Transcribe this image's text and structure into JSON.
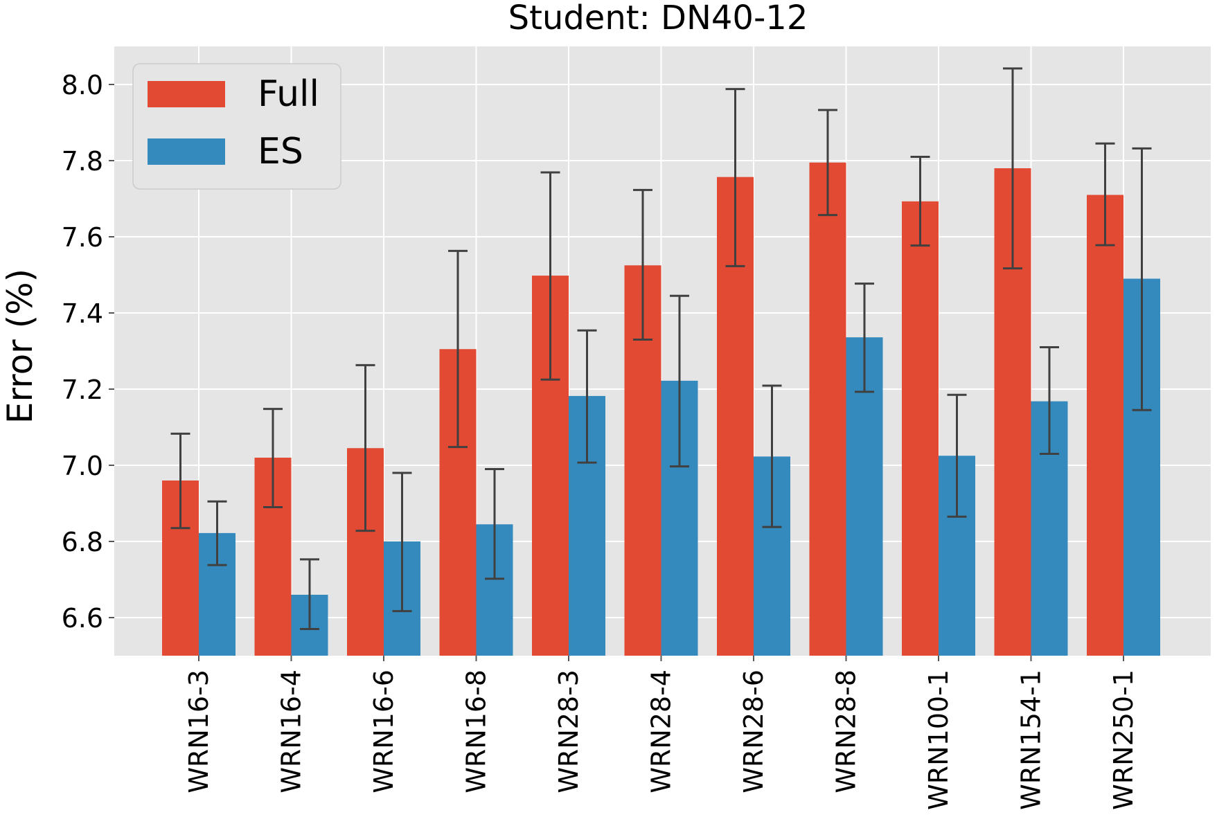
{
  "chart_data": {
    "type": "bar",
    "title": "Student: DN40-12",
    "xlabel": "",
    "ylabel": "Error (%)",
    "ylim": [
      6.5,
      8.1
    ],
    "yticks": [
      6.6,
      6.8,
      7.0,
      7.2,
      7.4,
      7.6,
      7.8,
      8.0
    ],
    "ytick_labels": [
      "6.6",
      "6.8",
      "7.0",
      "7.2",
      "7.4",
      "7.6",
      "7.8",
      "8.0"
    ],
    "grid": true,
    "legend_position": "top-left",
    "categories": [
      "WRN16-3",
      "WRN16-4",
      "WRN16-6",
      "WRN16-8",
      "WRN28-3",
      "WRN28-4",
      "WRN28-6",
      "WRN28-8",
      "WRN100-1",
      "WRN154-1",
      "WRN250-1"
    ],
    "series": [
      {
        "name": "Full",
        "color": "#E24A33",
        "values": [
          6.96,
          7.02,
          7.045,
          7.305,
          7.498,
          7.525,
          7.757,
          7.795,
          7.693,
          7.78,
          7.71
        ],
        "err_low": [
          6.835,
          6.89,
          6.828,
          7.048,
          7.225,
          7.33,
          7.523,
          7.657,
          7.577,
          7.517,
          7.578
        ],
        "err_high": [
          7.083,
          7.148,
          7.263,
          7.563,
          7.769,
          7.723,
          7.988,
          7.933,
          7.81,
          8.042,
          7.845
        ]
      },
      {
        "name": "ES",
        "color": "#348ABD",
        "values": [
          6.822,
          6.66,
          6.8,
          6.845,
          7.182,
          7.222,
          7.023,
          7.336,
          7.025,
          7.168,
          7.49
        ],
        "err_low": [
          6.738,
          6.57,
          6.617,
          6.702,
          7.007,
          6.997,
          6.838,
          7.193,
          6.865,
          7.03,
          7.145
        ],
        "err_high": [
          6.905,
          6.753,
          6.98,
          6.99,
          7.354,
          7.445,
          7.209,
          7.477,
          7.185,
          7.31,
          7.832
        ]
      }
    ],
    "colors": {
      "plot_background": "#E5E5E5",
      "grid": "#FFFFFF",
      "errorbar": "#404040"
    }
  }
}
